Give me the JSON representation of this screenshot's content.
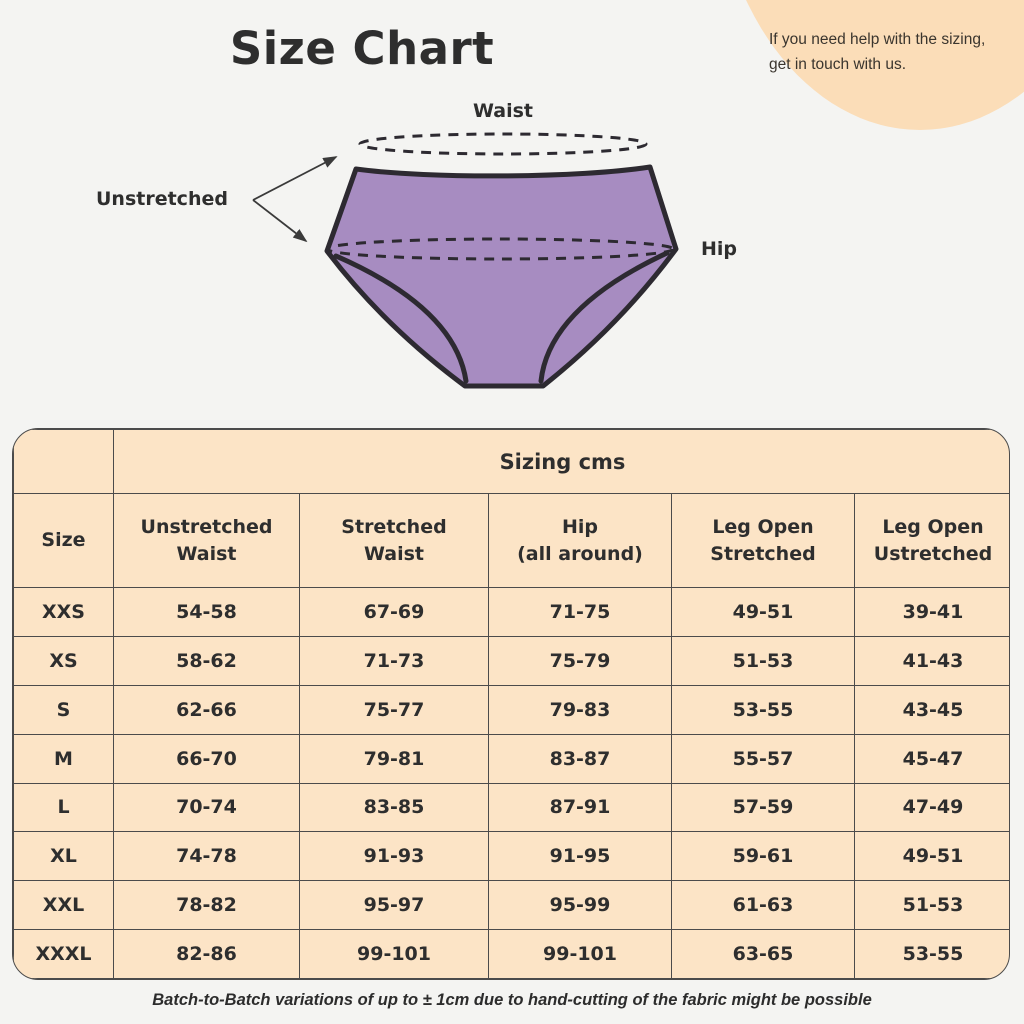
{
  "page": {
    "title": "Size Chart",
    "help_note": "If you need help with the sizing,\nget in touch with us.",
    "footer_note": "Batch-to-Batch variations of up to ± 1cm due to hand-cutting of the fabric might be possible"
  },
  "diagram": {
    "labels": {
      "waist": "Waist",
      "hip": "Hip",
      "unstretched": "Unstretched"
    }
  },
  "table": {
    "group_header": "Sizing cms",
    "columns": [
      "Size",
      "Unstretched\nWaist",
      "Stretched\nWaist",
      "Hip\n(all around)",
      "Leg Open\nStretched",
      "Leg Open\nUstretched"
    ],
    "rows": [
      {
        "size": "XXS",
        "values": [
          "54-58",
          "67-69",
          "71-75",
          "49-51",
          "39-41"
        ]
      },
      {
        "size": "XS",
        "values": [
          "58-62",
          "71-73",
          "75-79",
          "51-53",
          "41-43"
        ]
      },
      {
        "size": "S",
        "values": [
          "62-66",
          "75-77",
          "79-83",
          "53-55",
          "43-45"
        ]
      },
      {
        "size": "M",
        "values": [
          "66-70",
          "79-81",
          "83-87",
          "55-57",
          "45-47"
        ]
      },
      {
        "size": "L",
        "values": [
          "70-74",
          "83-85",
          "87-91",
          "57-59",
          "47-49"
        ]
      },
      {
        "size": "XL",
        "values": [
          "74-78",
          "91-93",
          "91-95",
          "59-61",
          "49-51"
        ]
      },
      {
        "size": "XXL",
        "values": [
          "78-82",
          "95-97",
          "95-99",
          "61-63",
          "51-53"
        ]
      },
      {
        "size": "XXXL",
        "values": [
          "82-86",
          "99-101",
          "99-101",
          "63-65",
          "53-55"
        ]
      }
    ]
  },
  "colors": {
    "page_bg": "#f4f4f2",
    "blob": "#fbddb8",
    "table_bg": "#fce4c6",
    "border": "#4b4b4b",
    "text": "#2e2e2e",
    "garment_fill": "#a78cc1",
    "garment_outline": "#2d2a31",
    "arrow": "#3a3a3a"
  }
}
